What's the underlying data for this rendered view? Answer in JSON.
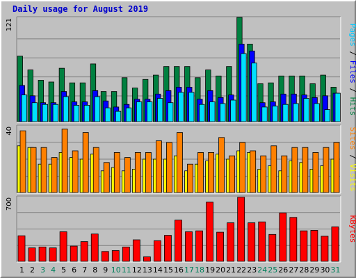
{
  "title": "Daily usage for August 2019",
  "colors": {
    "hits": "#008040",
    "files": "#0000ff",
    "pages": "#00e0ff",
    "visits": "#ffff00",
    "sites": "#ff8000",
    "kbytes": "#ff0000",
    "weekday_label": "#000000",
    "weekend_label": "#00805c",
    "background": "#c0c0c0"
  },
  "chart_data": [
    {
      "type": "bar",
      "title": "Daily usage for August 2019",
      "ylabel_parts": [
        {
          "text": "Pages",
          "color": "#00c8ff"
        },
        {
          "text": " / ",
          "color": "#000000"
        },
        {
          "text": "Files",
          "color": "#0000ff"
        },
        {
          "text": " / ",
          "color": "#000000"
        },
        {
          "text": "Hits",
          "color": "#008040"
        }
      ],
      "ymax_label": "121",
      "ylim": [
        0,
        121
      ],
      "grid": true,
      "categories": [
        "1",
        "2",
        "3",
        "4",
        "5",
        "6",
        "7",
        "8",
        "9",
        "10",
        "11",
        "12",
        "13",
        "14",
        "15",
        "16",
        "17",
        "18",
        "19",
        "20",
        "21",
        "22",
        "23",
        "24",
        "25",
        "26",
        "27",
        "28",
        "29",
        "30",
        "31"
      ],
      "series": [
        {
          "name": "Hits",
          "values": [
            76,
            60,
            48,
            46,
            62,
            45,
            45,
            67,
            35,
            35,
            51,
            39,
            49,
            54,
            64,
            64,
            64,
            51,
            60,
            53,
            64,
            121,
            90,
            44,
            45,
            53,
            53,
            53,
            44,
            54,
            40
          ]
        },
        {
          "name": "Files",
          "values": [
            42,
            30,
            22,
            22,
            35,
            23,
            23,
            36,
            24,
            17,
            20,
            26,
            26,
            32,
            36,
            40,
            40,
            26,
            36,
            28,
            31,
            90,
            82,
            22,
            23,
            32,
            32,
            31,
            28,
            30,
            33
          ]
        },
        {
          "name": "Pages",
          "values": [
            31,
            22,
            20,
            20,
            29,
            19,
            19,
            29,
            16,
            12,
            16,
            23,
            23,
            27,
            22,
            34,
            34,
            20,
            23,
            21,
            25,
            79,
            68,
            17,
            18,
            20,
            21,
            27,
            21,
            14,
            33
          ]
        }
      ]
    },
    {
      "type": "bar",
      "ylabel_parts": [
        {
          "text": "Sites",
          "color": "#ff8000"
        },
        {
          "text": " / ",
          "color": "#000000"
        },
        {
          "text": "Visits",
          "color": "#ffff00"
        }
      ],
      "ymax_label": "40",
      "ylim": [
        0,
        40
      ],
      "grid": true,
      "categories": [
        "1",
        "2",
        "3",
        "4",
        "5",
        "6",
        "7",
        "8",
        "9",
        "10",
        "11",
        "12",
        "13",
        "14",
        "15",
        "16",
        "17",
        "18",
        "19",
        "20",
        "21",
        "22",
        "23",
        "24",
        "25",
        "26",
        "27",
        "28",
        "29",
        "30",
        "31"
      ],
      "series": [
        {
          "name": "Sites",
          "values": [
            37,
            27,
            27,
            21,
            38,
            25,
            36,
            27,
            18,
            24,
            21,
            24,
            24,
            31,
            30,
            36,
            17,
            24,
            24,
            33,
            22,
            30,
            25,
            22,
            28,
            22,
            27,
            27,
            24,
            27,
            30
          ]
        },
        {
          "name": "Visits",
          "values": [
            28,
            27,
            17,
            17,
            24,
            21,
            20,
            23,
            13,
            15,
            13,
            14,
            20,
            20,
            20,
            22,
            13,
            17,
            19,
            23,
            20,
            25,
            24,
            14,
            16,
            13,
            19,
            18,
            14,
            16,
            20
          ]
        }
      ]
    },
    {
      "type": "bar",
      "ylabel_parts": [
        {
          "text": "KBytes",
          "color": "#ff0000"
        }
      ],
      "ymax_label": "700",
      "ylim": [
        0,
        700
      ],
      "grid": true,
      "categories": [
        "1",
        "2",
        "3",
        "4",
        "5",
        "6",
        "7",
        "8",
        "9",
        "10",
        "11",
        "12",
        "13",
        "14",
        "15",
        "16",
        "17",
        "18",
        "19",
        "20",
        "21",
        "22",
        "23",
        "24",
        "25",
        "26",
        "27",
        "28",
        "29",
        "30",
        "31"
      ],
      "series": [
        {
          "name": "KBytes",
          "values": [
            285,
            150,
            160,
            150,
            330,
            170,
            220,
            305,
            110,
            120,
            160,
            240,
            50,
            230,
            290,
            460,
            330,
            340,
            660,
            325,
            430,
            715,
            430,
            440,
            300,
            540,
            490,
            340,
            345,
            280,
            385
          ]
        }
      ]
    }
  ],
  "days": [
    {
      "label": "1",
      "weekend": false
    },
    {
      "label": "2",
      "weekend": false
    },
    {
      "label": "3",
      "weekend": true
    },
    {
      "label": "4",
      "weekend": true
    },
    {
      "label": "5",
      "weekend": false
    },
    {
      "label": "6",
      "weekend": false
    },
    {
      "label": "7",
      "weekend": false
    },
    {
      "label": "8",
      "weekend": false
    },
    {
      "label": "9",
      "weekend": false
    },
    {
      "label": "10",
      "weekend": true
    },
    {
      "label": "11",
      "weekend": true
    },
    {
      "label": "12",
      "weekend": false
    },
    {
      "label": "13",
      "weekend": false
    },
    {
      "label": "14",
      "weekend": false
    },
    {
      "label": "15",
      "weekend": false
    },
    {
      "label": "16",
      "weekend": false
    },
    {
      "label": "17",
      "weekend": true
    },
    {
      "label": "18",
      "weekend": true
    },
    {
      "label": "19",
      "weekend": false
    },
    {
      "label": "20",
      "weekend": false
    },
    {
      "label": "21",
      "weekend": false
    },
    {
      "label": "22",
      "weekend": false
    },
    {
      "label": "23",
      "weekend": false
    },
    {
      "label": "24",
      "weekend": true
    },
    {
      "label": "25",
      "weekend": true
    },
    {
      "label": "26",
      "weekend": false
    },
    {
      "label": "27",
      "weekend": false
    },
    {
      "label": "28",
      "weekend": false
    },
    {
      "label": "29",
      "weekend": false
    },
    {
      "label": "30",
      "weekend": false
    },
    {
      "label": "31",
      "weekend": true
    }
  ]
}
